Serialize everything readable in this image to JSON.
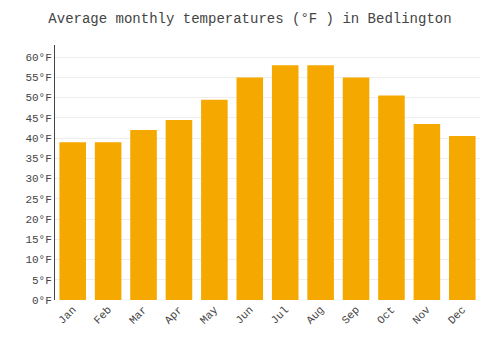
{
  "chart_data": {
    "type": "bar",
    "title": "Average monthly temperatures (°F ) in Bedlington",
    "categories": [
      "Jan",
      "Feb",
      "Mar",
      "Apr",
      "May",
      "Jun",
      "Jul",
      "Aug",
      "Sep",
      "Oct",
      "Nov",
      "Dec"
    ],
    "values": [
      39,
      39,
      42,
      44.5,
      49.5,
      55,
      58,
      58,
      55,
      50.5,
      43.5,
      40.5
    ],
    "color": "#F5A800",
    "ylim": [
      0,
      63
    ],
    "yticks": [
      {
        "value": 0,
        "label": "0°F"
      },
      {
        "value": 5,
        "label": "5°F"
      },
      {
        "value": 10,
        "label": "10°F"
      },
      {
        "value": 15,
        "label": "15°F"
      },
      {
        "value": 20,
        "label": "20°F"
      },
      {
        "value": 25,
        "label": "25°F"
      },
      {
        "value": 30,
        "label": "30°F"
      },
      {
        "value": 35,
        "label": "35°F"
      },
      {
        "value": 40,
        "label": "40°F"
      },
      {
        "value": 45,
        "label": "45°F"
      },
      {
        "value": 50,
        "label": "50°F"
      },
      {
        "value": 55,
        "label": "55°F"
      },
      {
        "value": 60,
        "label": "60°F"
      }
    ],
    "grid": true
  }
}
